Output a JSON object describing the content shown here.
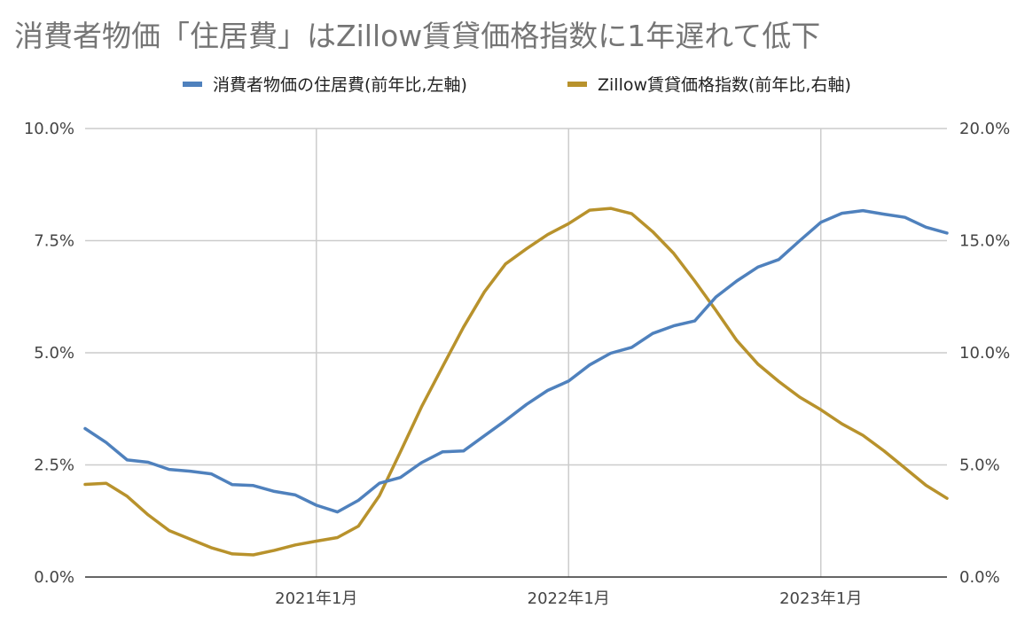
{
  "chart_data": {
    "type": "line",
    "title": "消費者物価「住居費」はZillow賃貸価格指数に1年遅れて低下",
    "legend_position": "top",
    "x_tick_labels": [
      "2021年1月",
      "2022年1月",
      "2023年1月"
    ],
    "x": [
      "2020年2月",
      "2020年3月",
      "2020年4月",
      "2020年5月",
      "2020年6月",
      "2020年7月",
      "2020年8月",
      "2020年9月",
      "2020年10月",
      "2020年11月",
      "2020年12月",
      "2021年1月",
      "2021年2月",
      "2021年3月",
      "2021年4月",
      "2021年5月",
      "2021年6月",
      "2021年7月",
      "2021年8月",
      "2021年9月",
      "2021年10月",
      "2021年11月",
      "2021年12月",
      "2022年1月",
      "2022年2月",
      "2022年3月",
      "2022年4月",
      "2022年5月",
      "2022年6月",
      "2022年7月",
      "2022年8月",
      "2022年9月",
      "2022年10月",
      "2022年11月",
      "2022年12月",
      "2023年1月",
      "2023年2月",
      "2023年3月",
      "2023年4月",
      "2023年5月",
      "2023年6月",
      "2023年7月"
    ],
    "y_left": {
      "min": 0,
      "max": 10,
      "ticks": [
        "0.0%",
        "2.5%",
        "5.0%",
        "7.5%",
        "10.0%"
      ]
    },
    "y_right": {
      "min": 0,
      "max": 20,
      "ticks": [
        "0.0%",
        "5.0%",
        "10.0%",
        "15.0%",
        "20.0%"
      ]
    },
    "grid": true,
    "series": [
      {
        "name": "消費者物価の住居費(前年比,左軸)",
        "axis": "left",
        "color": "#4f81bd",
        "values": [
          3.31,
          3.0,
          2.61,
          2.56,
          2.4,
          2.36,
          2.3,
          2.06,
          2.04,
          1.91,
          1.83,
          1.6,
          1.45,
          1.71,
          2.09,
          2.22,
          2.55,
          2.79,
          2.81,
          3.15,
          3.49,
          3.85,
          4.16,
          4.37,
          4.73,
          4.99,
          5.12,
          5.43,
          5.6,
          5.71,
          6.24,
          6.6,
          6.91,
          7.08,
          7.5,
          7.91,
          8.11,
          8.17,
          8.09,
          8.02,
          7.8,
          7.67
        ]
      },
      {
        "name": "Zillow賃貸価格指数(前年比,右軸)",
        "axis": "right",
        "color": "#b8922c",
        "values": [
          4.13,
          4.18,
          3.6,
          2.77,
          2.07,
          1.69,
          1.31,
          1.03,
          0.99,
          1.19,
          1.43,
          1.6,
          1.76,
          2.27,
          3.63,
          5.58,
          7.58,
          9.37,
          11.14,
          12.72,
          13.96,
          14.64,
          15.27,
          15.76,
          16.36,
          16.44,
          16.2,
          15.4,
          14.43,
          13.2,
          11.9,
          10.55,
          9.5,
          8.72,
          8.02,
          7.46,
          6.83,
          6.32,
          5.63,
          4.86,
          4.09,
          3.51
        ]
      }
    ]
  }
}
